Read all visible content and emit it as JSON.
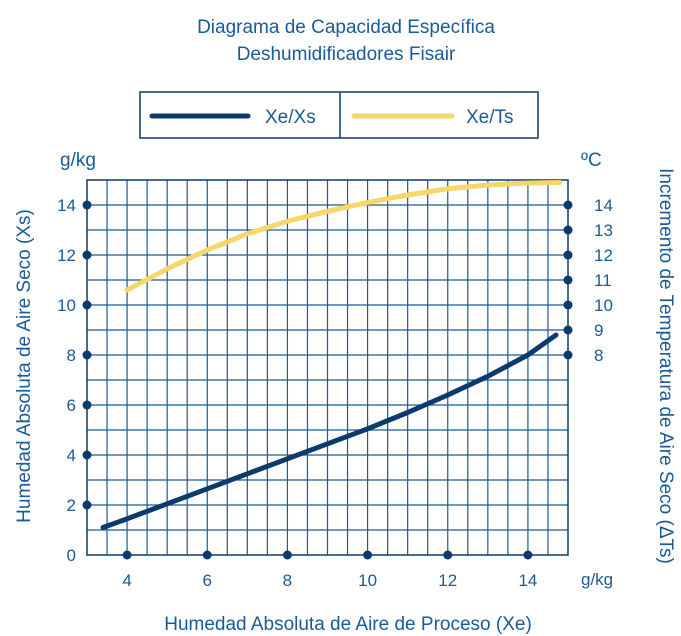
{
  "chart_data": {
    "type": "line",
    "title": "Diagrama de Capacidad Específica",
    "subtitle": "Deshumidificadores Fisair",
    "xlabel": "Humedad Absoluta de Aire de Proceso (Xe)",
    "x_unit": "g/kg",
    "ylabel": "Humedad Absoluta de Aire Seco (Xs)",
    "y_unit": "g/kg",
    "y2label": "Incremento de Temperatura de Aire Seco (ΔTs)",
    "y2_unit": "ºC",
    "xlim": [
      3,
      15
    ],
    "ylim": [
      0,
      15
    ],
    "x_ticks": [
      4,
      6,
      8,
      10,
      12,
      14
    ],
    "y_ticks": [
      0,
      2,
      4,
      6,
      8,
      10,
      12,
      14
    ],
    "y2_ticks": [
      8,
      9,
      10,
      11,
      12,
      13,
      14
    ],
    "y2_tick_positions_left_scale": [
      8,
      9,
      10,
      11,
      12,
      13,
      14
    ],
    "grid": true,
    "legend_position": "top-center",
    "series": [
      {
        "name": "Xe/Xs",
        "color": "#0c3a6c",
        "axis": "left",
        "x": [
          3.4,
          4,
          5,
          6,
          7,
          8,
          9,
          10,
          11,
          12,
          13,
          14,
          14.7
        ],
        "y": [
          1.1,
          1.45,
          2.05,
          2.65,
          3.25,
          3.85,
          4.45,
          5.05,
          5.7,
          6.4,
          7.15,
          8.0,
          8.8
        ]
      },
      {
        "name": "Xe/Ts",
        "color": "#f5d76b",
        "axis": "right",
        "x": [
          4,
          5,
          6,
          7,
          8,
          9,
          10,
          11,
          12,
          13,
          14,
          14.8
        ],
        "y": [
          10.6,
          11.45,
          12.2,
          12.85,
          13.35,
          13.75,
          14.1,
          14.4,
          14.65,
          14.8,
          14.88,
          14.9
        ]
      }
    ]
  }
}
